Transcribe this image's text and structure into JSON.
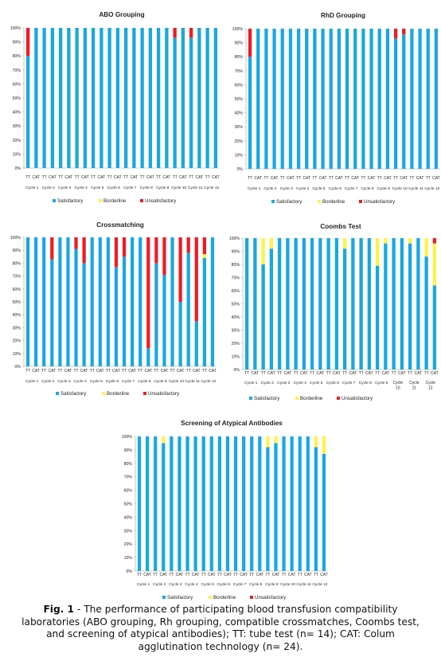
{
  "colors": {
    "satisfactory": "#1aa7e0",
    "borderline": "#fff24a",
    "unsatisfactory": "#ee1c25",
    "axis": "#bdbdbd"
  },
  "legend_labels": [
    "Satisfactory",
    "Borderline",
    "Unsatisfactory"
  ],
  "caption": {
    "fig_label": "Fig. 1",
    "text": " - The performance of participating blood transfusion compatibility laboratories (ABO grouping, Rh grouping, compatible crossmatches, Coombs test, and screening of atypical antibodies); TT: tube test (n= 14); CAT: Colum agglutination technology (n= 24)."
  },
  "chart_data": [
    {
      "type": "bar",
      "stacked": true,
      "title": "ABO Grouping",
      "categories": [
        "TT",
        "CAT",
        "TT",
        "CAT",
        "TT",
        "CAT",
        "TT",
        "CAT",
        "TT",
        "CAT",
        "TT",
        "CAT",
        "TT",
        "CAT",
        "TT",
        "CAT",
        "TT",
        "CAT",
        "TT",
        "CAT",
        "TT",
        "CAT",
        "TT",
        "CAT"
      ],
      "groups": [
        "Cycle 1",
        "Cycle 2",
        "Cycle 3",
        "Cycle 4",
        "Cycle 5",
        "Cycle 6",
        "Cycle 7",
        "Cycle 8",
        "Cycle 9",
        "Cycle 10",
        "Cycle 11",
        "Cycle 12"
      ],
      "ylim": [
        0,
        100
      ],
      "yticks": [
        "0%",
        "10%",
        "20%",
        "30%",
        "40%",
        "50%",
        "60%",
        "70%",
        "80%",
        "90%",
        "100%"
      ],
      "series": [
        {
          "name": "Satisfactory",
          "values": [
            80,
            100,
            100,
            100,
            100,
            100,
            100,
            100,
            100,
            100,
            100,
            100,
            100,
            100,
            100,
            100,
            100,
            100,
            93,
            100,
            93,
            100,
            100,
            100
          ]
        },
        {
          "name": "Borderline",
          "values": [
            0,
            0,
            0,
            0,
            0,
            0,
            0,
            0,
            0,
            0,
            0,
            0,
            0,
            0,
            0,
            0,
            0,
            0,
            0,
            0,
            0,
            0,
            0,
            0
          ]
        },
        {
          "name": "Unsatisfactory",
          "values": [
            20,
            0,
            0,
            0,
            0,
            0,
            0,
            0,
            0,
            0,
            0,
            0,
            0,
            0,
            0,
            0,
            0,
            0,
            7,
            0,
            7,
            0,
            0,
            0
          ]
        }
      ],
      "legend": "bottom"
    },
    {
      "type": "bar",
      "stacked": true,
      "title": "RhD Grouping",
      "categories": [
        "TT",
        "CAT",
        "TT",
        "CAT",
        "TT",
        "CAT",
        "TT",
        "CAT",
        "TT",
        "CAT",
        "TT",
        "CAT",
        "TT",
        "CAT",
        "TT",
        "CAT",
        "TT",
        "CAT",
        "TT",
        "CAT",
        "TT",
        "CAT",
        "TT",
        "CAT"
      ],
      "groups": [
        "Cycle 1",
        "Cycle 2",
        "Cycle 3",
        "Cycle 4",
        "Cycle 5",
        "Cycle 6",
        "Cycle 7",
        "Cycle 8",
        "Cycle 9",
        "Cycle 10",
        "Cycle 11",
        "Cycle 12"
      ],
      "ylim": [
        0,
        100
      ],
      "yticks": [
        "0%",
        "10%",
        "20%",
        "30%",
        "40%",
        "50%",
        "60%",
        "70%",
        "80%",
        "90%",
        "100%"
      ],
      "series": [
        {
          "name": "Satisfactory",
          "values": [
            80,
            100,
            100,
            100,
            100,
            100,
            100,
            100,
            100,
            100,
            100,
            100,
            100,
            100,
            100,
            100,
            100,
            100,
            93,
            96,
            100,
            100,
            100,
            100
          ]
        },
        {
          "name": "Borderline",
          "values": [
            0,
            0,
            0,
            0,
            0,
            0,
            0,
            0,
            0,
            0,
            0,
            0,
            0,
            0,
            0,
            0,
            0,
            0,
            0,
            0,
            0,
            0,
            0,
            0
          ]
        },
        {
          "name": "Unsatisfactory",
          "values": [
            20,
            0,
            0,
            0,
            0,
            0,
            0,
            0,
            0,
            0,
            0,
            0,
            0,
            0,
            0,
            0,
            0,
            0,
            7,
            4,
            0,
            0,
            0,
            0
          ]
        }
      ],
      "legend": "bottom"
    },
    {
      "type": "bar",
      "stacked": true,
      "title": "Crossmatching",
      "categories": [
        "TT",
        "CAT",
        "TT",
        "CAT",
        "TT",
        "CAT",
        "TT",
        "CAT",
        "TT",
        "CAT",
        "TT",
        "CAT",
        "TT",
        "CAT",
        "TT",
        "CAT",
        "TT",
        "CAT",
        "TT",
        "CAT",
        "TT",
        "CAT",
        "TT",
        "CAT"
      ],
      "groups": [
        "Cycle 1",
        "Cycle 2",
        "Cycle 3",
        "Cycle 4",
        "Cycle 5",
        "Cycle 6",
        "Cycle 7",
        "Cycle 8",
        "Cycle 9",
        "Cycle 10",
        "Cycle 11",
        "Cycle 12"
      ],
      "ylim": [
        0,
        100
      ],
      "yticks": [
        "0%",
        "10%",
        "20%",
        "30%",
        "40%",
        "50%",
        "60%",
        "70%",
        "80%",
        "90%",
        "100%"
      ],
      "series": [
        {
          "name": "Satisfactory",
          "values": [
            100,
            100,
            100,
            83,
            100,
            100,
            91,
            80,
            100,
            100,
            100,
            77,
            85,
            100,
            100,
            14,
            80,
            71,
            100,
            50,
            88,
            35,
            84,
            100
          ]
        },
        {
          "name": "Borderline",
          "values": [
            0,
            0,
            0,
            0,
            0,
            0,
            0,
            0,
            0,
            0,
            0,
            0,
            0,
            0,
            0,
            0,
            0,
            0,
            0,
            0,
            0,
            0,
            3,
            0
          ]
        },
        {
          "name": "Unsatisfactory",
          "values": [
            0,
            0,
            0,
            17,
            0,
            0,
            9,
            20,
            0,
            0,
            0,
            23,
            15,
            0,
            0,
            86,
            20,
            29,
            0,
            50,
            12,
            65,
            13,
            0
          ]
        }
      ],
      "legend": "bottom"
    },
    {
      "type": "bar",
      "stacked": true,
      "title": "Coombs Test",
      "categories": [
        "TT",
        "CAT",
        "TT",
        "CAT",
        "TT",
        "CAT",
        "TT",
        "CAT",
        "TT",
        "CAT",
        "TT",
        "CAT",
        "TT",
        "CAT",
        "TT",
        "CAT",
        "TT",
        "CAT",
        "TT",
        "CAT",
        "TT",
        "CAT",
        "TT",
        "CAT"
      ],
      "groups": [
        "Cycle 1",
        "Cycle 2",
        "Cycle 3",
        "Cycle 4",
        "Cycle 5",
        "Cycle 6",
        "Cycle 7",
        "Cycle 8",
        "Cycle 9",
        "Cycle 10",
        "Cycle 11",
        "Cycle 12"
      ],
      "ylim": [
        0,
        100
      ],
      "yticks": [
        "0%",
        "10%",
        "20%",
        "30%",
        "40%",
        "50%",
        "60%",
        "70%",
        "80%",
        "90%",
        "100%"
      ],
      "series": [
        {
          "name": "Satisfactory",
          "values": [
            100,
            100,
            80,
            92,
            100,
            100,
            100,
            100,
            100,
            100,
            100,
            100,
            92,
            100,
            100,
            100,
            79,
            96,
            100,
            100,
            96,
            100,
            86,
            64
          ]
        },
        {
          "name": "Borderline",
          "values": [
            0,
            0,
            20,
            8,
            0,
            0,
            0,
            0,
            0,
            0,
            0,
            0,
            8,
            0,
            0,
            0,
            21,
            4,
            0,
            0,
            4,
            0,
            14,
            32
          ]
        },
        {
          "name": "Unsatisfactory",
          "values": [
            0,
            0,
            0,
            0,
            0,
            0,
            0,
            0,
            0,
            0,
            0,
            0,
            0,
            0,
            0,
            0,
            0,
            0,
            0,
            0,
            0,
            0,
            0,
            4
          ]
        }
      ],
      "legend": "bottom"
    },
    {
      "type": "bar",
      "stacked": true,
      "title": "Screening of Atypical Antibodies",
      "categories": [
        "TT",
        "CAT",
        "TT",
        "CAT",
        "TT",
        "CAT",
        "TT",
        "CAT",
        "TT",
        "CAT",
        "TT",
        "CAT",
        "TT",
        "CAT",
        "TT",
        "CAT",
        "TT",
        "CAT",
        "TT",
        "CAT",
        "TT",
        "CAT",
        "TT",
        "CAT"
      ],
      "groups": [
        "Cycle 1",
        "Cycle 2",
        "Cycle 3",
        "Cycle 4",
        "Cycle 5",
        "Cycle 6",
        "Cycle 7",
        "Cycle 8",
        "Cycle 9",
        "Cycle 10",
        "Cycle 11",
        "Cycle 12"
      ],
      "ylim": [
        0,
        100
      ],
      "yticks": [
        "0%",
        "10%",
        "20%",
        "30%",
        "40%",
        "50%",
        "60%",
        "70%",
        "80%",
        "90%",
        "100%"
      ],
      "series": [
        {
          "name": "Satisfactory",
          "values": [
            100,
            100,
            100,
            95,
            100,
            100,
            100,
            100,
            100,
            100,
            100,
            100,
            100,
            100,
            100,
            100,
            92,
            95,
            100,
            100,
            100,
            100,
            92,
            87
          ]
        },
        {
          "name": "Borderline",
          "values": [
            0,
            0,
            0,
            5,
            0,
            0,
            0,
            0,
            0,
            0,
            0,
            0,
            0,
            0,
            0,
            0,
            8,
            5,
            0,
            0,
            0,
            0,
            8,
            13
          ]
        },
        {
          "name": "Unsatisfactory",
          "values": [
            0,
            0,
            0,
            0,
            0,
            0,
            0,
            0,
            0,
            0,
            0,
            0,
            0,
            0,
            0,
            0,
            0,
            0,
            0,
            0,
            0,
            0,
            0,
            0
          ]
        }
      ],
      "legend": "bottom"
    }
  ]
}
